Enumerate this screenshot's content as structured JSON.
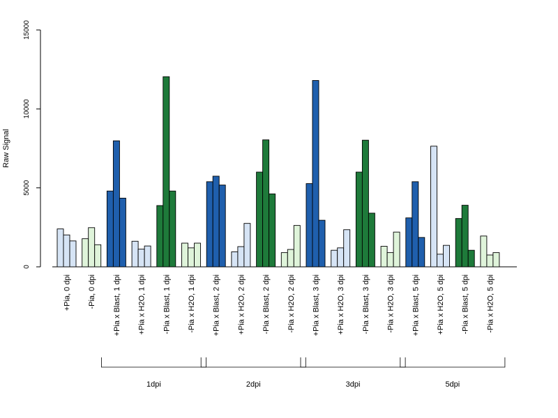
{
  "chart_data": {
    "type": "bar",
    "title": "",
    "xlabel": "",
    "ylabel": "Raw Signal",
    "ylim": [
      0,
      15000
    ],
    "yticks": [
      0,
      5000,
      10000,
      15000
    ],
    "grid": false,
    "legend": "none",
    "colors": {
      "light_blue": "#d6e4f5",
      "light_green": "#dff4da",
      "dark_blue": "#1f5fad",
      "dark_green": "#1e7a3a",
      "outline": "#000000"
    },
    "categories": [
      {
        "label": "+Pia, 0 dpi",
        "color": "light_blue",
        "values": [
          2400,
          2020,
          1640
        ]
      },
      {
        "label": "-Pia, 0 dpi",
        "color": "light_green",
        "values": [
          1780,
          2480,
          1400
        ]
      },
      {
        "label": "+Pia x Blast, 1 dpi",
        "color": "dark_blue",
        "values": [
          4800,
          7980,
          4350
        ]
      },
      {
        "label": "+Pia x H2O, 1 dpi",
        "color": "light_blue",
        "values": [
          1620,
          1120,
          1320
        ]
      },
      {
        "label": "-Pia x Blast, 1 dpi",
        "color": "dark_green",
        "values": [
          3880,
          12040,
          4800
        ]
      },
      {
        "label": "-Pia x H2O, 1 dpi",
        "color": "light_green",
        "values": [
          1500,
          1200,
          1500
        ]
      },
      {
        "label": "+Pia x Blast, 2 dpi",
        "color": "dark_blue",
        "values": [
          5390,
          5740,
          5180
        ]
      },
      {
        "label": "+Pia x H2O, 2 dpi",
        "color": "light_blue",
        "values": [
          950,
          1280,
          2750
        ]
      },
      {
        "label": "-Pia x Blast, 2 dpi",
        "color": "dark_green",
        "values": [
          6000,
          8040,
          4620
        ]
      },
      {
        "label": "-Pia x H2O, 2 dpi",
        "color": "light_green",
        "values": [
          900,
          1100,
          2620
        ]
      },
      {
        "label": "+Pia x Blast, 3 dpi",
        "color": "dark_blue",
        "values": [
          5270,
          11800,
          2950
        ]
      },
      {
        "label": "+Pia x H2O, 3 dpi",
        "color": "light_blue",
        "values": [
          1050,
          1200,
          2350
        ]
      },
      {
        "label": "-Pia x Blast, 3 dpi",
        "color": "dark_green",
        "values": [
          6000,
          8020,
          3400
        ]
      },
      {
        "label": "-Pia x H2O, 3 dpi",
        "color": "light_green",
        "values": [
          1300,
          900,
          2200
        ]
      },
      {
        "label": "+Pia x Blast, 5 dpi",
        "color": "dark_blue",
        "values": [
          3100,
          5390,
          1860
        ]
      },
      {
        "label": "+Pia x H2O, 5 dpi",
        "color": "light_blue",
        "values": [
          7640,
          800,
          1360
        ]
      },
      {
        "label": "-Pia x Blast, 5 dpi",
        "color": "dark_green",
        "values": [
          3060,
          3900,
          1050
        ]
      },
      {
        "label": "-Pia x H2O, 5 dpi",
        "color": "light_green",
        "values": [
          1950,
          750,
          900
        ]
      }
    ],
    "groups": [
      {
        "label": "1dpi",
        "from": 2,
        "to": 5
      },
      {
        "label": "2dpi",
        "from": 6,
        "to": 9
      },
      {
        "label": "3dpi",
        "from": 10,
        "to": 13
      },
      {
        "label": "5dpi",
        "from": 14,
        "to": 17
      }
    ]
  }
}
